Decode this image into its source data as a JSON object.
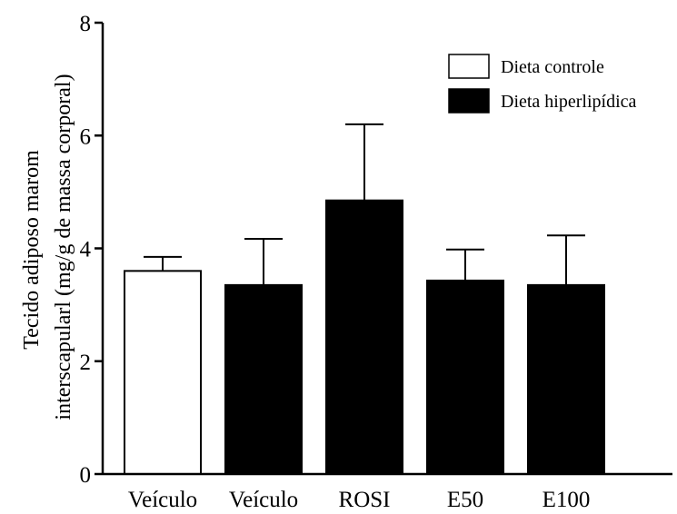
{
  "chart_data": {
    "type": "bar",
    "ylabel_lines": [
      "Tecido adiposo marom",
      "interscapularl (mg/g de massa corporal)"
    ],
    "ylim": [
      0,
      8
    ],
    "yticks": [
      0,
      2,
      4,
      6,
      8
    ],
    "categories": [
      "Veículo",
      "Veículo",
      "ROSI",
      "E50",
      "E100"
    ],
    "values": [
      3.6,
      3.35,
      4.85,
      3.43,
      3.35
    ],
    "errors": [
      0.25,
      0.82,
      1.35,
      0.55,
      0.88
    ],
    "groups": [
      "Dieta controle",
      "Dieta hiperlipídica",
      "Dieta hiperlipídica",
      "Dieta hiperlipídica",
      "Dieta hiperlipídica"
    ],
    "legend": [
      {
        "label": "Dieta controle",
        "color": "#ffffff"
      },
      {
        "label": "Dieta hiperlipídica",
        "color": "#000000"
      }
    ],
    "legend_position": "top-right",
    "grid": false
  }
}
